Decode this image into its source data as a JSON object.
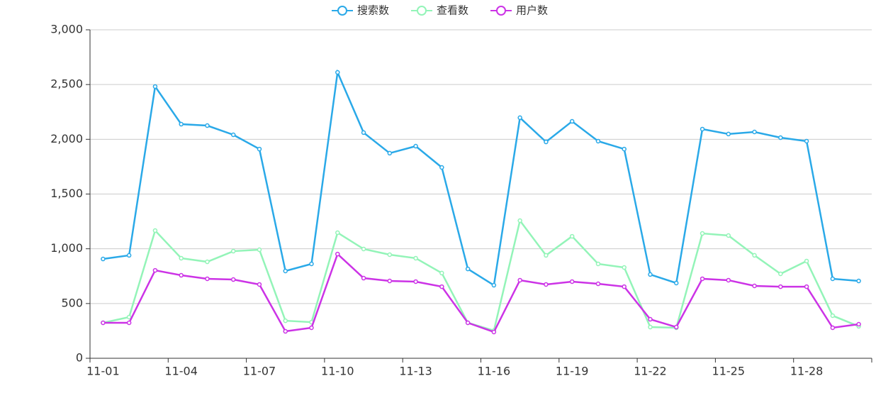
{
  "chart_data": {
    "type": "line",
    "categories": [
      "11-01",
      null,
      null,
      "11-04",
      null,
      null,
      "11-07",
      null,
      null,
      "11-10",
      null,
      null,
      "11-13",
      null,
      null,
      "11-16",
      null,
      null,
      "11-19",
      null,
      null,
      "11-22",
      null,
      null,
      "11-25",
      null,
      null,
      "11-28",
      null,
      null
    ],
    "series": [
      {
        "name": "搜索数",
        "color": "#2aa9e8",
        "values": [
          907,
          940,
          2482,
          2138,
          2125,
          2041,
          1911,
          797,
          862,
          2611,
          2061,
          1873,
          1937,
          1743,
          816,
          667,
          2197,
          1976,
          2164,
          1983,
          1911,
          765,
          687,
          2093,
          2048,
          2067,
          2015,
          1983,
          726,
          706
        ]
      },
      {
        "name": "查看数",
        "color": "#93f4b8",
        "values": [
          324,
          376,
          1166,
          914,
          881,
          978,
          991,
          343,
          330,
          1147,
          998,
          946,
          914,
          778,
          324,
          253,
          1257,
          940,
          1114,
          862,
          829,
          285,
          279,
          1140,
          1121,
          940,
          771,
          888,
          389,
          292
        ]
      },
      {
        "name": "用户数",
        "color": "#cc33e6",
        "values": [
          324,
          324,
          803,
          758,
          726,
          719,
          674,
          246,
          279,
          952,
          732,
          706,
          700,
          654,
          324,
          240,
          713,
          674,
          700,
          680,
          654,
          356,
          285,
          726,
          713,
          661,
          654,
          654,
          279,
          311
        ]
      }
    ],
    "ylim": [
      0,
      3000
    ],
    "yticks": [
      0,
      500,
      {
        "value": 1000,
        "label": "1,000"
      },
      {
        "value": 1500,
        "label": "1,500"
      },
      {
        "value": 2000,
        "label": "2,000"
      },
      {
        "value": 2500,
        "label": "2,500"
      },
      {
        "value": 3000,
        "label": "3,000"
      }
    ],
    "grid": true,
    "legend_position": "top"
  }
}
